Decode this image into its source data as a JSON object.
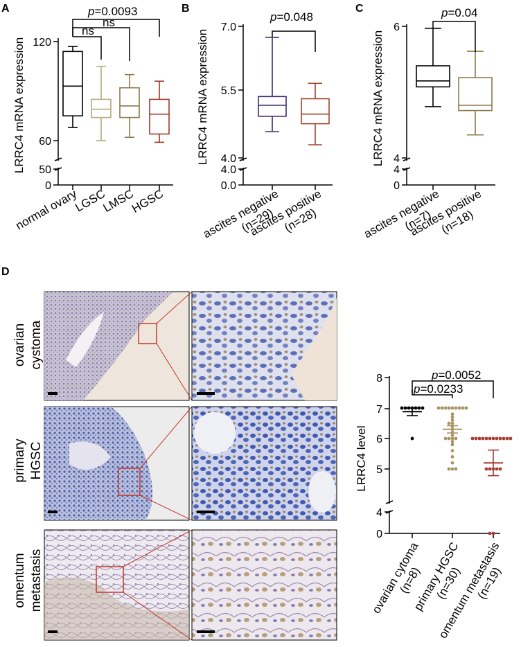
{
  "panels": {
    "A": {
      "label": "A"
    },
    "B": {
      "label": "B"
    },
    "C": {
      "label": "C"
    },
    "D": {
      "label": "D"
    }
  },
  "colors": {
    "black": "#000000",
    "tan": "#b5a97a",
    "olive": "#8c7a4a",
    "brown": "#a0392a",
    "purple": "#3d2d6b",
    "sienna": "#a0452f",
    "gray_dot": "#a89466",
    "red_dot": "#a83c30",
    "zoom_red": "#c0392b"
  },
  "images": {
    "row_labels": [
      {
        "line1": "ovarian",
        "line2": "cystoma"
      },
      {
        "line1": "primary",
        "line2": "HGSC"
      },
      {
        "line1": "omentum",
        "line2": "metastasis"
      }
    ]
  },
  "chart_data": [
    {
      "panel": "A",
      "type": "box",
      "ylabel": "LRRC4 mRNA expression",
      "y_ticks": [
        "120",
        "60",
        "50",
        "0"
      ],
      "categories": [
        "normal ovary",
        "LGSC",
        "LMSC",
        "HGSC"
      ],
      "series_colors": [
        "#000000",
        "#b5a97a",
        "#8c7a4a",
        "#a0392a"
      ],
      "boxes": [
        {
          "min": 68,
          "q1": 75,
          "median": 93,
          "q3": 114,
          "max": 117
        },
        {
          "min": 60,
          "q1": 74,
          "median": 79,
          "q3": 85,
          "max": 105
        },
        {
          "min": 62,
          "q1": 74,
          "median": 81,
          "q3": 92,
          "max": 100
        },
        {
          "min": 59,
          "q1": 64,
          "median": 76,
          "q3": 85,
          "max": 96
        }
      ],
      "comparisons": [
        {
          "from": "normal ovary",
          "to": "LGSC",
          "label": "ns"
        },
        {
          "from": "normal ovary",
          "to": "LMSC",
          "label": "ns"
        },
        {
          "from": "normal ovary",
          "to": "HGSC",
          "label": "p=0.0093",
          "p_prefix": "p",
          "p_rest": "=0.0093"
        }
      ]
    },
    {
      "panel": "B",
      "type": "box",
      "ylabel": "LRRC4 mRNA expression",
      "y_ticks": [
        "7.0",
        "5.5",
        "4.0",
        "4.0",
        "0.0"
      ],
      "categories": [
        {
          "line1": "ascites negative",
          "line2": "(n=29)"
        },
        {
          "line1": "ascites positive",
          "line2": "(n=28)"
        }
      ],
      "series_colors": [
        "#3d2d6b",
        "#a0452f"
      ],
      "boxes": [
        {
          "min": 4.6,
          "q1": 4.95,
          "median": 5.2,
          "q3": 5.4,
          "max": 6.75
        },
        {
          "min": 4.3,
          "q1": 4.78,
          "median": 5.0,
          "q3": 5.35,
          "max": 5.7
        }
      ],
      "comparisons": [
        {
          "from": 0,
          "to": 1,
          "label": "p=0.048",
          "p_prefix": "p",
          "p_rest": "=0.048"
        }
      ]
    },
    {
      "panel": "C",
      "type": "box",
      "ylabel": "LRRC4 mRNA expression",
      "y_ticks": [
        "6",
        "4",
        "4",
        "0"
      ],
      "categories": [
        {
          "line1": "ascites negative",
          "line2": "(n=7)"
        },
        {
          "line1": "ascites positive",
          "line2": "(n=18)"
        }
      ],
      "series_colors": [
        "#000000",
        "#8c7a4a"
      ],
      "boxes": [
        {
          "min": 4.78,
          "q1": 5.08,
          "median": 5.17,
          "q3": 5.4,
          "max": 5.97
        },
        {
          "min": 4.35,
          "q1": 4.72,
          "median": 4.8,
          "q3": 5.22,
          "max": 5.62
        }
      ],
      "comparisons": [
        {
          "from": 0,
          "to": 1,
          "label": "p=0.04",
          "p_prefix": "p",
          "p_rest": "=0.04"
        }
      ]
    },
    {
      "panel": "D",
      "type": "scatter",
      "ylabel": "LRRC4 level",
      "y_ticks": [
        "8",
        "7",
        "6",
        "5",
        "4",
        "0"
      ],
      "categories": [
        {
          "line1": "ovarian cytoma",
          "line2": "(n=8)"
        },
        {
          "line1": "primary HGSC",
          "line2": "(n=30)"
        },
        {
          "line1": "omentum metastasis",
          "line2": "(n=19)"
        }
      ],
      "series_colors": [
        "#000000",
        "#a89466",
        "#a83c30"
      ],
      "groups": [
        {
          "mean": 6.88,
          "sem_low": 6.75,
          "sem_high": 7.0,
          "points": [
            7,
            7,
            7,
            7,
            7,
            7,
            7,
            6.0
          ]
        },
        {
          "mean": 6.3,
          "sem_low": 6.18,
          "sem_high": 6.42,
          "points": [
            7,
            7,
            7,
            7,
            7,
            7,
            7,
            7,
            7,
            6.8,
            6.7,
            6.6,
            6.5,
            6.4,
            6.3,
            6.2,
            6.1,
            6.0,
            6.0,
            6.0,
            6.0,
            5.9,
            5.8,
            5.6,
            5.4,
            5.2,
            5.0,
            5.0,
            5.0,
            6.5
          ]
        },
        {
          "mean": 5.2,
          "sem_low": 4.78,
          "sem_high": 5.62,
          "points": [
            6,
            6,
            6,
            6,
            6,
            6,
            6,
            6,
            6,
            6,
            6,
            6,
            5.0,
            5.0,
            5.0,
            5.0,
            5.0,
            0,
            0
          ]
        }
      ],
      "comparisons": [
        {
          "from": 0,
          "to": 1,
          "label": "p=0.0233",
          "p_prefix": "p",
          "p_rest": "=0.0233"
        },
        {
          "from": 0,
          "to": 2,
          "label": "p=0.0052",
          "p_prefix": "p",
          "p_rest": "=0.0052"
        }
      ]
    }
  ]
}
